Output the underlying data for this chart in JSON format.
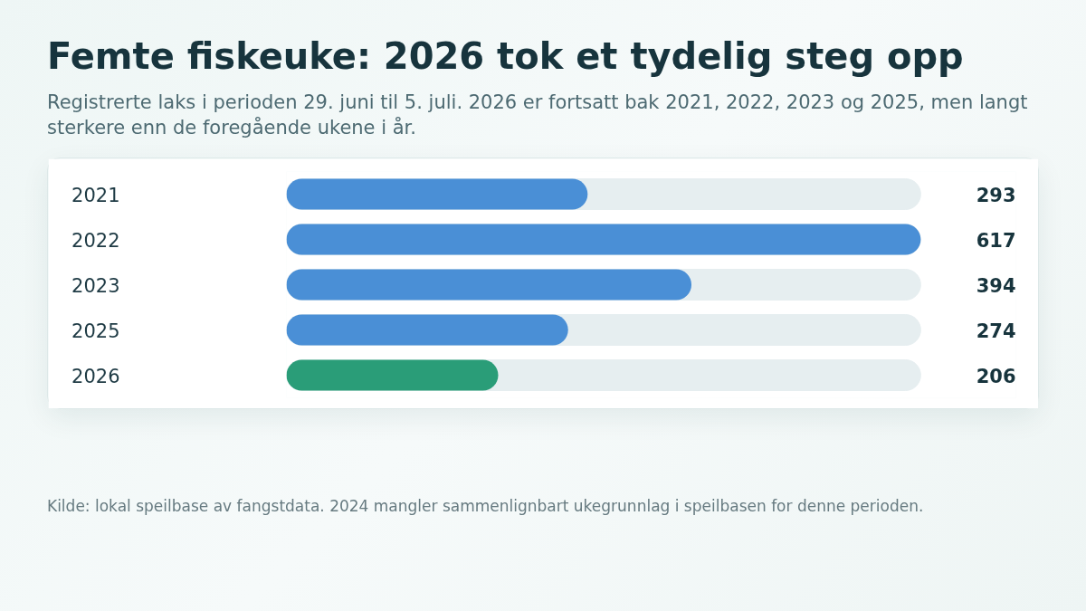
{
  "chart_data": {
    "type": "bar",
    "orientation": "horizontal",
    "title": "Femte fiskeuke: 2026 tok et tydelig steg opp",
    "subtitle": "Registrerte laks i perioden 29. juni til 5. juli. 2026 er fortsatt bak 2021, 2022, 2023 og 2025, men langt sterkere enn de foregående ukene i år.",
    "categories": [
      "2021",
      "2022",
      "2023",
      "2025",
      "2026"
    ],
    "values": [
      293,
      617,
      394,
      274,
      206
    ],
    "colors": [
      "#4a8fd6",
      "#4a8fd6",
      "#4a8fd6",
      "#4a8fd6",
      "#2a9d78"
    ],
    "data_labels": true,
    "grid": false,
    "annotations": [
      "Kilde: lokal speilbase av fangstdata. 2024 mangler sammenlignbart ukegrunnlag i speilbasen for denne perioden."
    ]
  }
}
